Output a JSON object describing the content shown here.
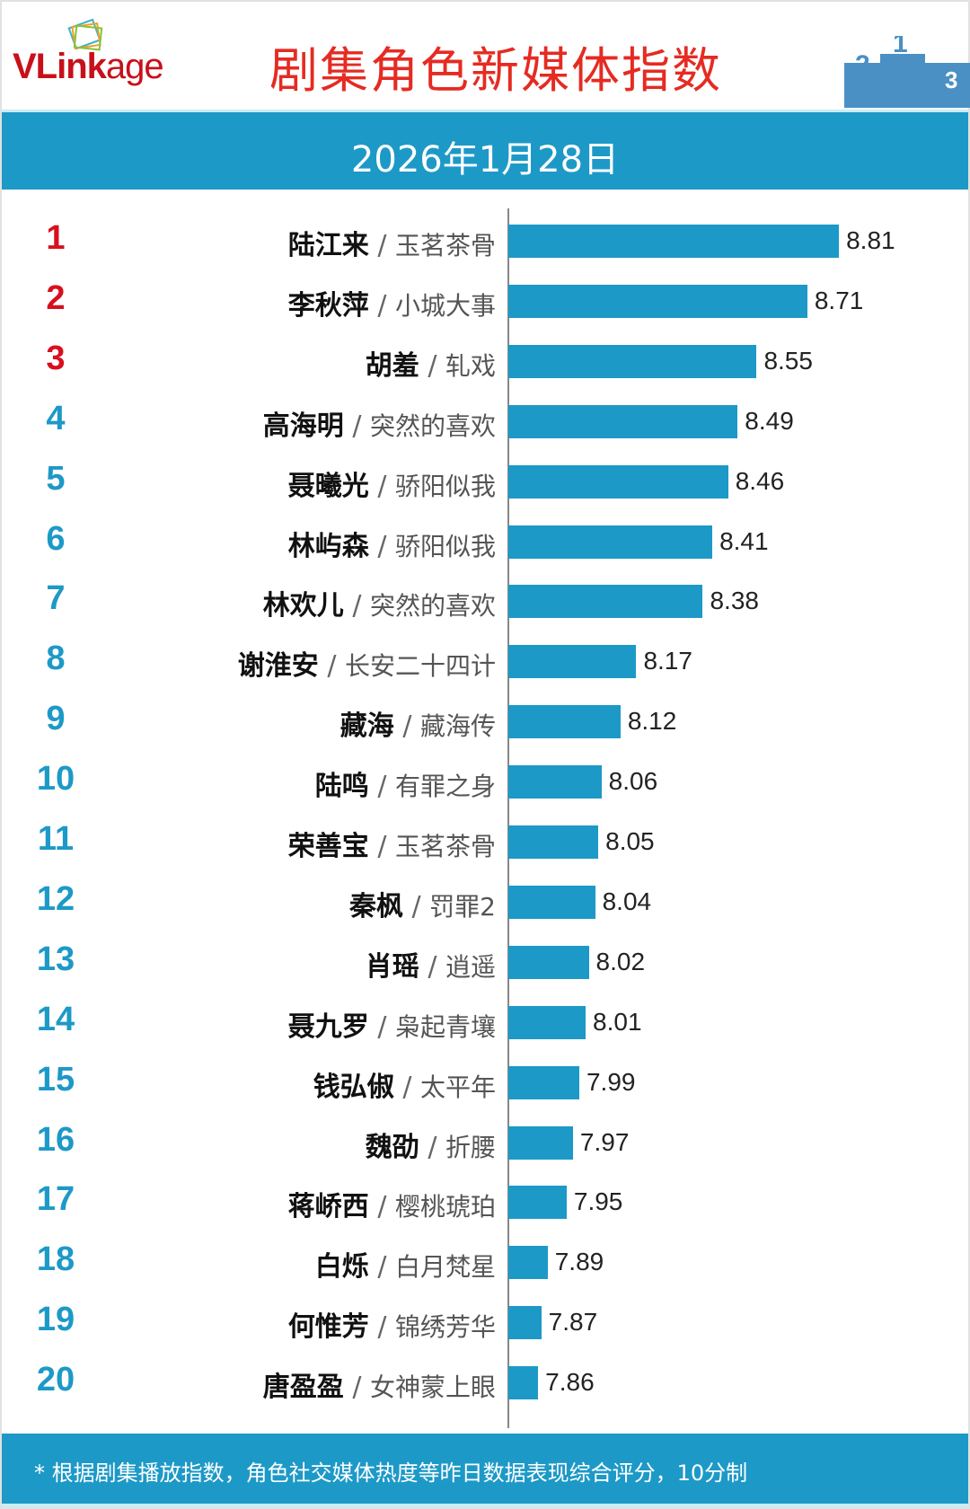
{
  "header": {
    "logo_text": "VLinkage",
    "title": "剧集角色新媒体指数",
    "date": "2026年1月28日"
  },
  "colors": {
    "bar": "#1d99c7",
    "top3_rank": "#d8101e",
    "rank": "#1d99c7",
    "title": "#e52b22"
  },
  "chart_data": {
    "type": "bar",
    "orientation": "horizontal",
    "title": "剧集角色新媒体指数",
    "categories": [
      {
        "rank": "1",
        "name": "陆江来",
        "drama": "玉茗茶骨"
      },
      {
        "rank": "2",
        "name": "李秋萍",
        "drama": "小城大事"
      },
      {
        "rank": "3",
        "name": "胡羞",
        "drama": "轧戏"
      },
      {
        "rank": "4",
        "name": "高海明",
        "drama": "突然的喜欢"
      },
      {
        "rank": "5",
        "name": "聂曦光",
        "drama": "骄阳似我"
      },
      {
        "rank": "6",
        "name": "林屿森",
        "drama": "骄阳似我"
      },
      {
        "rank": "7",
        "name": "林欢儿",
        "drama": "突然的喜欢"
      },
      {
        "rank": "8",
        "name": "谢淮安",
        "drama": "长安二十四计"
      },
      {
        "rank": "9",
        "name": "藏海",
        "drama": "藏海传"
      },
      {
        "rank": "10",
        "name": "陆鸣",
        "drama": "有罪之身"
      },
      {
        "rank": "11",
        "name": "荣善宝",
        "drama": "玉茗茶骨"
      },
      {
        "rank": "12",
        "name": "秦枫",
        "drama": "罚罪2"
      },
      {
        "rank": "13",
        "name": "肖瑶",
        "drama": "逍遥"
      },
      {
        "rank": "14",
        "name": "聂九罗",
        "drama": "枭起青壤"
      },
      {
        "rank": "15",
        "name": "钱弘俶",
        "drama": "太平年"
      },
      {
        "rank": "16",
        "name": "魏劭",
        "drama": "折腰"
      },
      {
        "rank": "17",
        "name": "蒋峤西",
        "drama": "樱桃琥珀"
      },
      {
        "rank": "18",
        "name": "白烁",
        "drama": "白月梵星"
      },
      {
        "rank": "19",
        "name": "何惟芳",
        "drama": "锦绣芳华"
      },
      {
        "rank": "20",
        "name": "唐盈盈",
        "drama": "女神蒙上眼"
      }
    ],
    "values": [
      "8.81",
      "8.71",
      "8.55",
      "8.49",
      "8.46",
      "8.41",
      "8.38",
      "8.17",
      "8.12",
      "8.06",
      "8.05",
      "8.04",
      "8.02",
      "8.01",
      "7.99",
      "7.97",
      "7.95",
      "7.89",
      "7.87",
      "7.86"
    ],
    "separator": "/",
    "grid": false,
    "legend": "none"
  },
  "footer": {
    "note": "* 根据剧集播放指数，角色社交媒体热度等昨日数据表现综合评分，10分制"
  }
}
